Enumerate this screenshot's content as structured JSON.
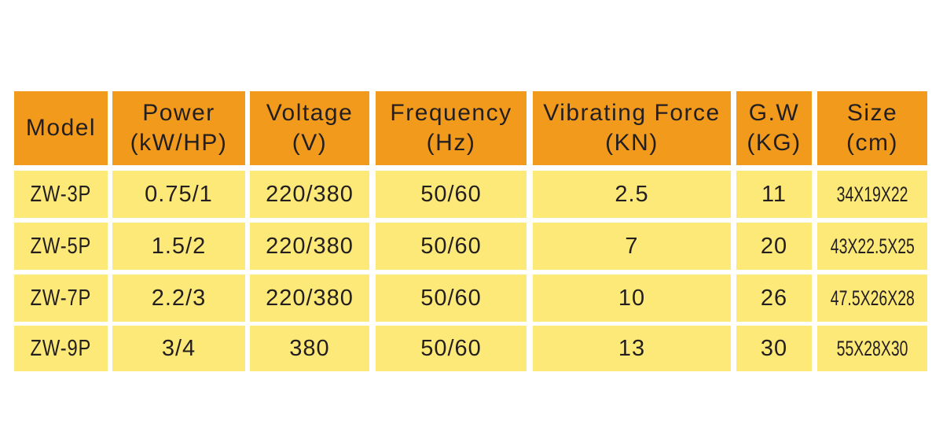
{
  "table": {
    "header": [
      [
        "Model"
      ],
      [
        "Power",
        "(kW/HP)"
      ],
      [
        "Voltage",
        "(V)"
      ],
      [
        "Frequency",
        "(Hz)"
      ],
      [
        "Vibrating Force",
        "(KN)"
      ],
      [
        "G.W",
        "(KG)"
      ],
      [
        "Size",
        "(cm)"
      ]
    ],
    "rows": [
      [
        "ZW-3P",
        "0.75/1",
        "220/380",
        "50/60",
        "2.5",
        "11",
        "34X19X22"
      ],
      [
        "ZW-5P",
        "1.5/2",
        "220/380",
        "50/60",
        "7",
        "20",
        "43X22.5X25"
      ],
      [
        "ZW-7P",
        "2.2/3",
        "220/380",
        "50/60",
        "10",
        "26",
        "47.5X26X28"
      ],
      [
        "ZW-9P",
        "3/4",
        "380",
        "50/60",
        "13",
        "30",
        "55X28X30"
      ]
    ]
  }
}
